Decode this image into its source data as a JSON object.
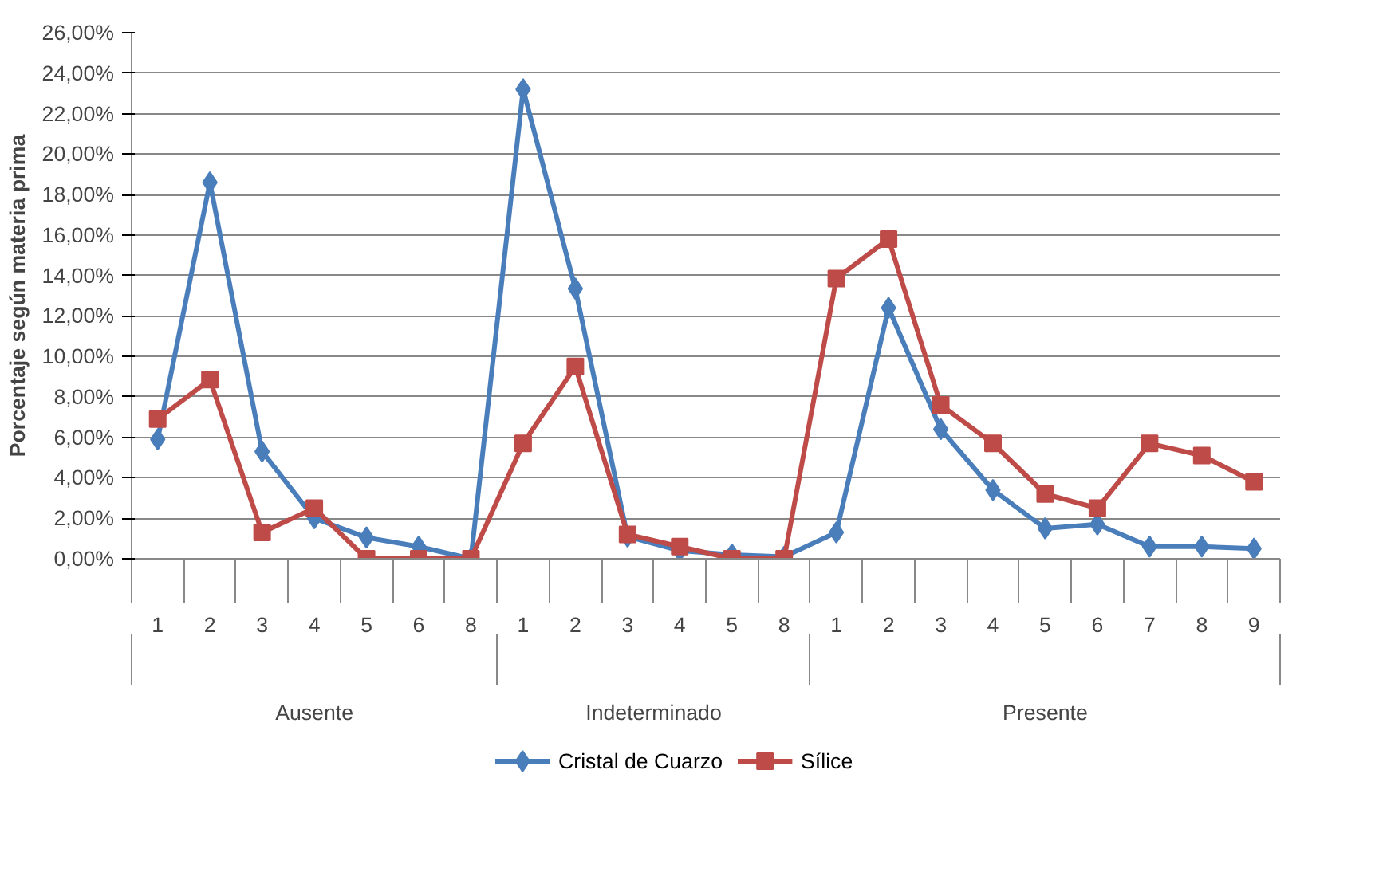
{
  "chart_data": {
    "type": "line",
    "ylabel": "Porcentaje según materia prima",
    "categories": [
      "1",
      "2",
      "3",
      "4",
      "5",
      "6",
      "8",
      "1",
      "2",
      "3",
      "4",
      "5",
      "8",
      "1",
      "2",
      "3",
      "4",
      "5",
      "6",
      "7",
      "8",
      "9"
    ],
    "annotations": [
      "Ausente",
      "Indeterminado",
      "Presente"
    ],
    "series": [
      {
        "name": "Cristal de Cuarzo",
        "color": "#4a7ebb",
        "marker": "diamond",
        "values": [
          5.9,
          18.6,
          5.3,
          2.0,
          1.05,
          0.6,
          0,
          23.2,
          13.35,
          1.1,
          0.4,
          0.2,
          0.1,
          1.3,
          12.4,
          6.4,
          3.4,
          1.5,
          1.7,
          0.6,
          0.6,
          0.5
        ]
      },
      {
        "name": "Sílice",
        "color": "#be4b48",
        "marker": "square",
        "values": [
          6.9,
          8.85,
          1.3,
          2.5,
          0,
          0,
          0,
          5.7,
          9.5,
          1.2,
          0.6,
          0,
          0,
          13.85,
          15.8,
          7.6,
          5.7,
          3.2,
          2.5,
          5.7,
          5.1,
          3.8
        ]
      }
    ],
    "ylim": [
      0,
      26
    ],
    "yticks": [
      {
        "value": 0,
        "label": "0,00%"
      },
      {
        "value": 2,
        "label": "2,00%"
      },
      {
        "value": 4,
        "label": "4,00%"
      },
      {
        "value": 6,
        "label": "6,00%"
      },
      {
        "value": 8,
        "label": "8,00%"
      },
      {
        "value": 10,
        "label": "10,00%"
      },
      {
        "value": 12,
        "label": "12,00%"
      },
      {
        "value": 14,
        "label": "14,00%"
      },
      {
        "value": 16,
        "label": "16,00%"
      },
      {
        "value": 18,
        "label": "18,00%"
      },
      {
        "value": 20,
        "label": "20,00%"
      },
      {
        "value": 22,
        "label": "22,00%"
      },
      {
        "value": 24,
        "label": "24,00%"
      },
      {
        "value": 26,
        "label": "26,00%"
      }
    ],
    "grid": "y",
    "legend": "bottom",
    "line_style": "solid"
  }
}
